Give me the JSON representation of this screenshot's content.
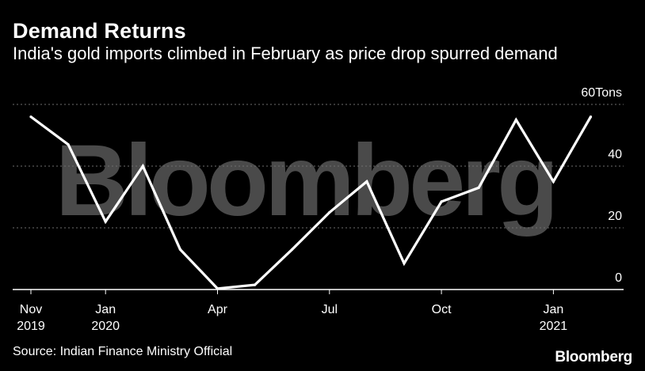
{
  "header": {
    "title": "Demand Returns",
    "subtitle": "India's gold imports climbed in February as price drop spurred demand"
  },
  "footer": {
    "source": "Source: Indian Finance Ministry Official",
    "brand": "Bloomberg"
  },
  "watermark": "Bloomberg",
  "colors": {
    "background": "#000000",
    "line": "#ffffff",
    "grid": "#6e6e6e",
    "text": "#ffffff",
    "watermark": "#4a4a4a"
  },
  "chart_data": {
    "type": "line",
    "title": "Demand Returns",
    "subtitle": "India's gold imports climbed in February as price drop spurred demand",
    "xlabel": "",
    "ylabel": "",
    "y_unit_label": "60Tons",
    "ylim": [
      0,
      60
    ],
    "yticks": [
      0,
      20,
      40,
      60
    ],
    "ytick_labels": [
      "0",
      "20",
      "40",
      "60Tons"
    ],
    "y_axis_position": "right",
    "grid": true,
    "legend": "none",
    "x_tick_labels": [
      {
        "month": "2019-11",
        "line1": "Nov",
        "line2": "2019"
      },
      {
        "month": "2020-01",
        "line1": "Jan",
        "line2": "2020"
      },
      {
        "month": "2020-04",
        "line1": "Apr",
        "line2": ""
      },
      {
        "month": "2020-07",
        "line1": "Jul",
        "line2": ""
      },
      {
        "month": "2020-10",
        "line1": "Oct",
        "line2": ""
      },
      {
        "month": "2021-01",
        "line1": "Jan",
        "line2": "2021"
      }
    ],
    "series": [
      {
        "x": [
          "2019-11",
          "2019-12",
          "2020-01",
          "2020-02",
          "2020-03",
          "2020-04",
          "2020-05",
          "2020-06",
          "2020-07",
          "2020-08",
          "2020-09",
          "2020-10",
          "2020-11",
          "2020-12",
          "2021-01",
          "2021-02"
        ],
        "values": [
          56,
          47,
          22,
          40,
          13,
          0.3,
          1.5,
          13,
          25,
          35,
          8.5,
          28.5,
          33,
          55,
          35,
          56
        ]
      }
    ]
  }
}
